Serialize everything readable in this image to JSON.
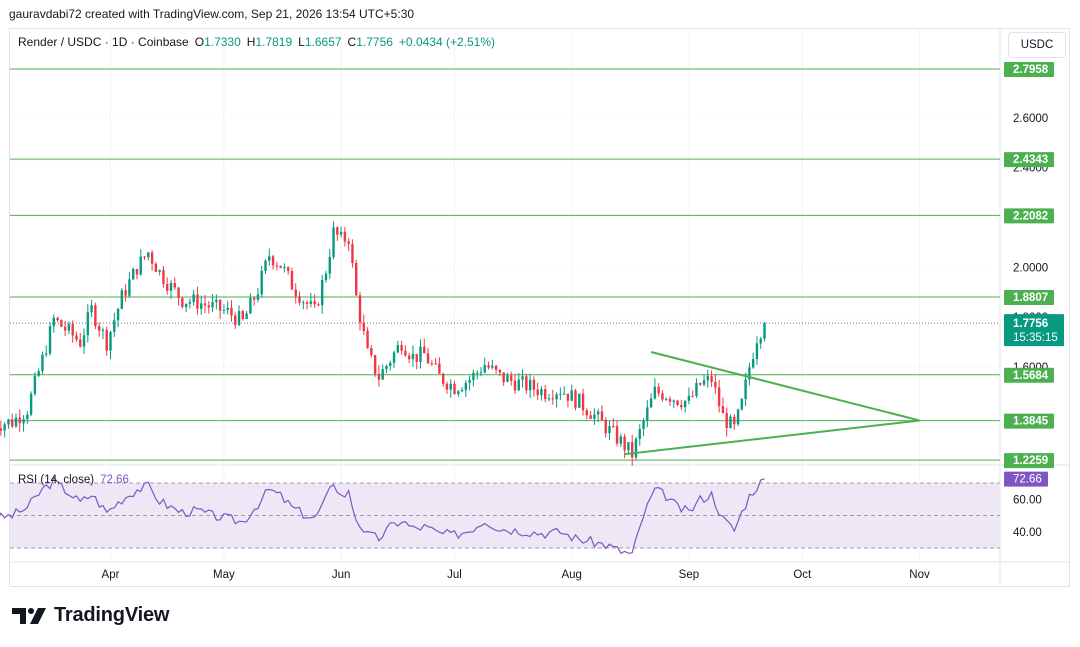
{
  "header": {
    "credit": "gauravdabi72 created with TradingView.com, Sep 21, 2026 13:54 UTC+5:30"
  },
  "legend": {
    "symbol": "Render / USDC · 1D · Coinbase",
    "o_label": "O",
    "o_value": "1.7330",
    "h_label": "H",
    "h_value": "1.7819",
    "l_label": "L",
    "l_value": "1.6657",
    "c_label": "C",
    "c_value": "1.7756",
    "change": "+0.0434 (+2.51%)"
  },
  "currency_button": "USDC",
  "rsi": {
    "label": "RSI (14, close)",
    "value": "72.66"
  },
  "brand": {
    "name": "TradingView"
  },
  "colors": {
    "up": "#089981",
    "down": "#f23645",
    "level_line": "#4caf50",
    "label_bg": "#4caf50",
    "rsi_line": "#7e57c2",
    "rsi_band": "#ede7f6"
  },
  "chart_data": [
    {
      "type": "candlestick",
      "title": "Render / USDC · 1D · Coinbase",
      "x_ticks": [
        "Apr",
        "May",
        "Jun",
        "Jul",
        "Aug",
        "Sep",
        "Oct",
        "Nov"
      ],
      "y_ticks": [
        "2.6000",
        "2.4000",
        "2.0000",
        "1.8000",
        "1.6000"
      ],
      "ylim": [
        1.22,
        2.85
      ],
      "grid": true,
      "last_price": "1.7756",
      "countdown": "15:35:15",
      "horizontal_levels": [
        {
          "value": 2.7958,
          "label": "2.7958"
        },
        {
          "value": 2.4343,
          "label": "2.4343"
        },
        {
          "value": 2.2082,
          "label": "2.2082"
        },
        {
          "value": 1.8807,
          "label": "1.8807"
        },
        {
          "value": 1.5684,
          "label": "1.5684"
        },
        {
          "value": 1.3845,
          "label": "1.3845"
        },
        {
          "value": 1.2259,
          "label": "1.2259"
        }
      ],
      "triangle": {
        "upper": [
          [
            "Aug 22",
            1.66
          ],
          [
            "Nov 1",
            1.385
          ]
        ],
        "lower": [
          [
            "Aug 15",
            1.25
          ],
          [
            "Nov 1",
            1.385
          ]
        ]
      },
      "close_path": [
        [
          "Mar 1",
          1.37
        ],
        [
          "Mar 6",
          1.38
        ],
        [
          "Mar 10",
          1.43
        ],
        [
          "Mar 14",
          1.63
        ],
        [
          "Mar 17",
          1.79
        ],
        [
          "Mar 21",
          1.74
        ],
        [
          "Mar 24",
          1.7
        ],
        [
          "Mar 27",
          1.83
        ],
        [
          "Mar 31",
          1.7
        ],
        [
          "Apr 4",
          1.88
        ],
        [
          "Apr 8",
          2.0
        ],
        [
          "Apr 11",
          2.06
        ],
        [
          "Apr 14",
          1.98
        ],
        [
          "Apr 17",
          1.92
        ],
        [
          "Apr 20",
          1.87
        ],
        [
          "Apr 24",
          1.86
        ],
        [
          "Apr 28",
          1.84
        ],
        [
          "May 2",
          1.82
        ],
        [
          "May 6",
          1.78
        ],
        [
          "May 10",
          1.91
        ],
        [
          "May 13",
          2.05
        ],
        [
          "May 16",
          2.01
        ],
        [
          "May 19",
          1.93
        ],
        [
          "May 22",
          1.87
        ],
        [
          "May 25",
          1.82
        ],
        [
          "May 28",
          1.99
        ],
        [
          "May 30",
          2.14
        ],
        [
          "Jun 1",
          2.11
        ],
        [
          "Jun 3",
          2.12
        ],
        [
          "Jun 5",
          1.88
        ],
        [
          "Jun 8",
          1.65
        ],
        [
          "Jun 11",
          1.56
        ],
        [
          "Jun 14",
          1.63
        ],
        [
          "Jun 17",
          1.7
        ],
        [
          "Jun 20",
          1.64
        ],
        [
          "Jun 23",
          1.65
        ],
        [
          "Jun 27",
          1.56
        ],
        [
          "Jul 1",
          1.52
        ],
        [
          "Jul 5",
          1.55
        ],
        [
          "Jul 9",
          1.61
        ],
        [
          "Jul 13",
          1.56
        ],
        [
          "Jul 17",
          1.54
        ],
        [
          "Jul 21",
          1.52
        ],
        [
          "Jul 25",
          1.5
        ],
        [
          "Jul 29",
          1.51
        ],
        [
          "Aug 2",
          1.47
        ],
        [
          "Aug 6",
          1.42
        ],
        [
          "Aug 10",
          1.36
        ],
        [
          "Aug 14",
          1.3
        ],
        [
          "Aug 17",
          1.25
        ],
        [
          "Aug 20",
          1.38
        ],
        [
          "Aug 23",
          1.5
        ],
        [
          "Aug 26",
          1.49
        ],
        [
          "Aug 29",
          1.47
        ],
        [
          "Sep 1",
          1.46
        ],
        [
          "Sep 4",
          1.53
        ],
        [
          "Sep 7",
          1.55
        ],
        [
          "Sep 10",
          1.4
        ],
        [
          "Sep 13",
          1.35
        ],
        [
          "Sep 15",
          1.45
        ],
        [
          "Sep 17",
          1.6
        ],
        [
          "Sep 19",
          1.72
        ],
        [
          "Sep 21",
          1.7756
        ]
      ]
    },
    {
      "type": "line",
      "title": "RSI (14, close)",
      "y_ticks": [
        "60.00",
        "40.00"
      ],
      "bands": [
        70,
        50,
        30
      ],
      "last_value": "72.66",
      "series": [
        {
          "name": "RSI (14, close)",
          "points": [
            [
              "Mar 1",
              48
            ],
            [
              "Mar 6",
              50
            ],
            [
              "Mar 10",
              55
            ],
            [
              "Mar 14",
              66
            ],
            [
              "Mar 17",
              71
            ],
            [
              "Mar 21",
              64
            ],
            [
              "Mar 24",
              58
            ],
            [
              "Mar 27",
              63
            ],
            [
              "Mar 31",
              52
            ],
            [
              "Apr 4",
              60
            ],
            [
              "Apr 8",
              66
            ],
            [
              "Apr 11",
              68
            ],
            [
              "Apr 14",
              59
            ],
            [
              "Apr 17",
              55
            ],
            [
              "Apr 20",
              52
            ],
            [
              "Apr 24",
              53
            ],
            [
              "Apr 28",
              50
            ],
            [
              "May 2",
              48
            ],
            [
              "May 6",
              46
            ],
            [
              "May 10",
              57
            ],
            [
              "May 13",
              66
            ],
            [
              "May 16",
              62
            ],
            [
              "May 19",
              55
            ],
            [
              "May 22",
              51
            ],
            [
              "May 25",
              48
            ],
            [
              "May 28",
              60
            ],
            [
              "May 30",
              71
            ],
            [
              "Jun 1",
              62
            ],
            [
              "Jun 3",
              64
            ],
            [
              "Jun 5",
              48
            ],
            [
              "Jun 8",
              38
            ],
            [
              "Jun 11",
              36
            ],
            [
              "Jun 14",
              43
            ],
            [
              "Jun 17",
              47
            ],
            [
              "Jun 20",
              42
            ],
            [
              "Jun 23",
              43
            ],
            [
              "Jun 27",
              39
            ],
            [
              "Jul 1",
              38
            ],
            [
              "Jul 5",
              41
            ],
            [
              "Jul 9",
              47
            ],
            [
              "Jul 13",
              42
            ],
            [
              "Jul 17",
              41
            ],
            [
              "Jul 21",
              40
            ],
            [
              "Jul 25",
              39
            ],
            [
              "Jul 29",
              40
            ],
            [
              "Aug 2",
              36
            ],
            [
              "Aug 6",
              34
            ],
            [
              "Aug 10",
              32
            ],
            [
              "Aug 14",
              28
            ],
            [
              "Aug 17",
              26
            ],
            [
              "Aug 20",
              50
            ],
            [
              "Aug 23",
              66
            ],
            [
              "Aug 26",
              62
            ],
            [
              "Aug 29",
              55
            ],
            [
              "Sep 1",
              52
            ],
            [
              "Sep 4",
              60
            ],
            [
              "Sep 7",
              63
            ],
            [
              "Sep 10",
              48
            ],
            [
              "Sep 13",
              41
            ],
            [
              "Sep 15",
              52
            ],
            [
              "Sep 17",
              62
            ],
            [
              "Sep 19",
              68
            ],
            [
              "Sep 21",
              72.66
            ]
          ]
        }
      ]
    }
  ]
}
